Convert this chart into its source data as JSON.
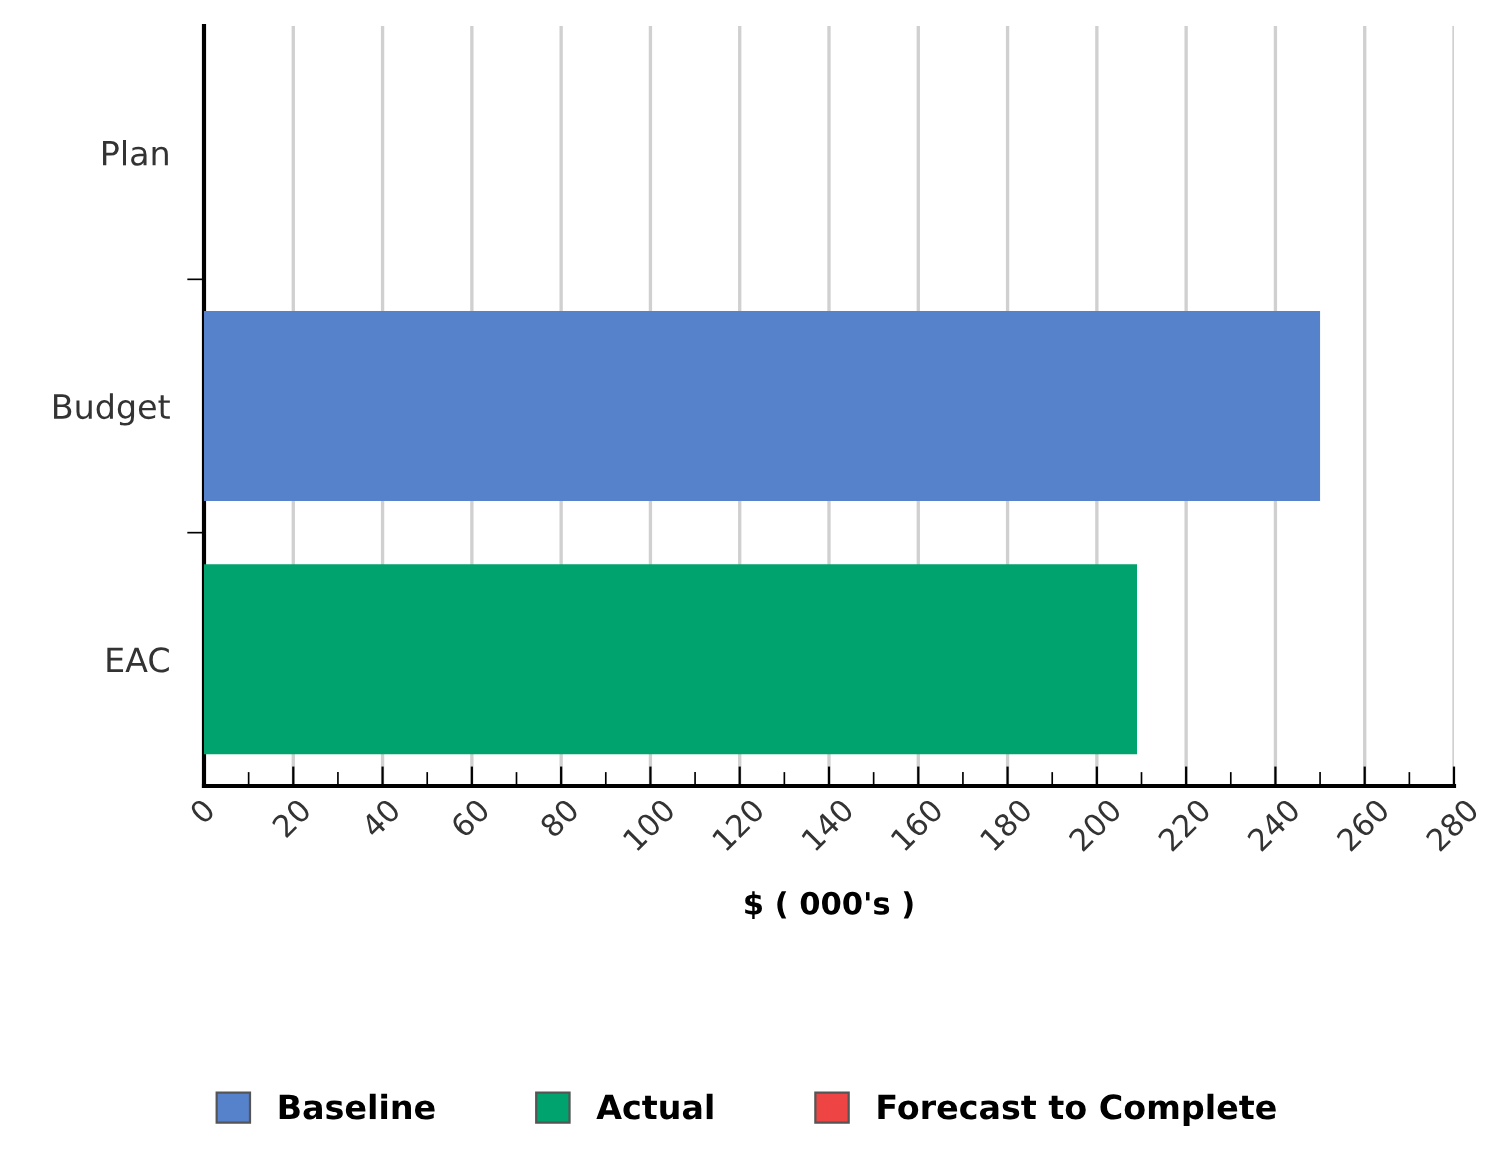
{
  "chart_data": {
    "type": "bar",
    "orientation": "horizontal",
    "stacked": true,
    "categories": [
      "Plan",
      "Budget",
      "EAC"
    ],
    "series": [
      {
        "name": "Baseline",
        "color": "#5681cb",
        "values": [
          null,
          250,
          null
        ]
      },
      {
        "name": "Actual",
        "color": "#00a26d",
        "values": [
          null,
          null,
          209
        ]
      },
      {
        "name": "Forecast to Complete",
        "color": "#ee4444",
        "values": [
          null,
          null,
          null
        ]
      }
    ],
    "xlabel": "$ ( 000's )",
    "xlim": [
      0,
      280
    ],
    "xticks": [
      0,
      20,
      40,
      60,
      80,
      100,
      120,
      140,
      160,
      180,
      200,
      220,
      240,
      260,
      280
    ],
    "grid": "x",
    "legend": "bottom"
  }
}
